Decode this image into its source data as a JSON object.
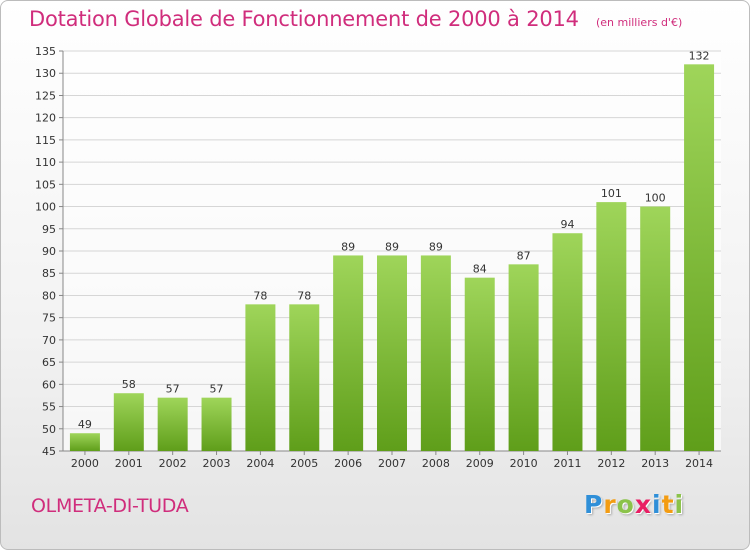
{
  "header": {
    "title": "Dotation Globale de Fonctionnement de 2000 à 2014",
    "subtitle": "(en milliers d'€)"
  },
  "footer": {
    "city": "OLMETA-DI-TUDA"
  },
  "logo": {
    "letters": [
      "P",
      "r",
      "o",
      "x",
      "i",
      "t",
      "i"
    ],
    "colors": [
      "#2f8fd8",
      "#f39c12",
      "#8bc34a",
      "#e91e63",
      "#2f8fd8",
      "#f39c12",
      "#8bc34a"
    ]
  },
  "colors": {
    "title": "#d02d7c",
    "bar_top": "#9fd55a",
    "bar_bottom": "#5f9e1a",
    "grid": "#d6d6d6",
    "axis_text": "#333333"
  },
  "chart_data": {
    "type": "bar",
    "categories": [
      "2000",
      "2001",
      "2002",
      "2003",
      "2004",
      "2005",
      "2006",
      "2007",
      "2008",
      "2009",
      "2010",
      "2011",
      "2012",
      "2013",
      "2014"
    ],
    "values": [
      49,
      58,
      57,
      57,
      78,
      78,
      89,
      89,
      89,
      84,
      87,
      94,
      101,
      100,
      132
    ],
    "data_labels": [
      "49",
      "58",
      "57",
      "57",
      "78",
      "78",
      "89",
      "89",
      "89",
      "84",
      "87",
      "94",
      "101",
      "100",
      "132"
    ],
    "ylim": [
      45,
      135
    ],
    "yticks": [
      45,
      50,
      55,
      60,
      65,
      70,
      75,
      80,
      85,
      90,
      95,
      100,
      105,
      110,
      115,
      120,
      125,
      130,
      135
    ],
    "grid": true,
    "legend": "none"
  }
}
